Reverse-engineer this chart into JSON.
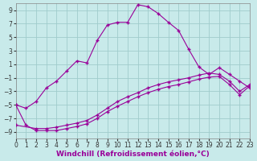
{
  "xlabel": "Windchill (Refroidissement éolien,°C)",
  "background_color": "#c8eaea",
  "grid_color": "#a0cccc",
  "line_color": "#990099",
  "xlim": [
    0,
    23
  ],
  "ylim": [
    -10,
    10
  ],
  "yticks": [
    -9,
    -7,
    -5,
    -3,
    -1,
    1,
    3,
    5,
    7,
    9
  ],
  "xticks": [
    0,
    1,
    2,
    3,
    4,
    5,
    6,
    7,
    8,
    9,
    10,
    11,
    12,
    13,
    14,
    15,
    16,
    17,
    18,
    19,
    20,
    21,
    22,
    23
  ],
  "curve1_x": [
    0,
    1,
    2,
    3,
    4,
    5,
    6,
    7,
    8,
    9,
    10,
    11,
    12,
    13,
    14,
    15,
    16,
    17,
    18,
    19,
    20,
    21,
    22,
    23
  ],
  "curve1_y": [
    -5.0,
    -5.5,
    -4.5,
    -2.5,
    -1.5,
    0.0,
    1.5,
    1.2,
    4.5,
    6.8,
    7.2,
    7.2,
    9.8,
    9.5,
    8.5,
    7.2,
    6.0,
    3.2,
    0.6,
    -0.5,
    0.5,
    -0.5,
    -1.5,
    -2.5
  ],
  "curve2_x": [
    0,
    2,
    3,
    4,
    5,
    6,
    7,
    8,
    9,
    10,
    11,
    12,
    13,
    14,
    15,
    16,
    17,
    18,
    19,
    20,
    21,
    22,
    23
  ],
  "curve2_y": [
    -8.0,
    -8.5,
    -8.5,
    -8.3,
    -8.0,
    -7.7,
    -7.3,
    -6.5,
    -5.5,
    -4.5,
    -3.8,
    -3.2,
    -2.5,
    -2.0,
    -1.6,
    -1.3,
    -1.0,
    -0.6,
    -0.3,
    -0.5,
    -1.5,
    -3.0,
    -2.0
  ],
  "curve3_x": [
    0,
    1,
    2,
    3,
    4,
    5,
    6,
    7,
    8,
    9,
    10,
    11,
    12,
    13,
    14,
    15,
    16,
    17,
    18,
    19,
    20,
    21,
    22,
    23
  ],
  "curve3_y": [
    -5.0,
    -8.0,
    -8.8,
    -8.8,
    -8.8,
    -8.5,
    -8.2,
    -7.8,
    -7.0,
    -6.0,
    -5.2,
    -4.5,
    -3.8,
    -3.2,
    -2.7,
    -2.3,
    -2.0,
    -1.6,
    -1.2,
    -0.9,
    -0.8,
    -2.0,
    -3.5,
    -2.2
  ],
  "xlabel_fontsize": 6.5,
  "tick_fontsize": 5.5
}
